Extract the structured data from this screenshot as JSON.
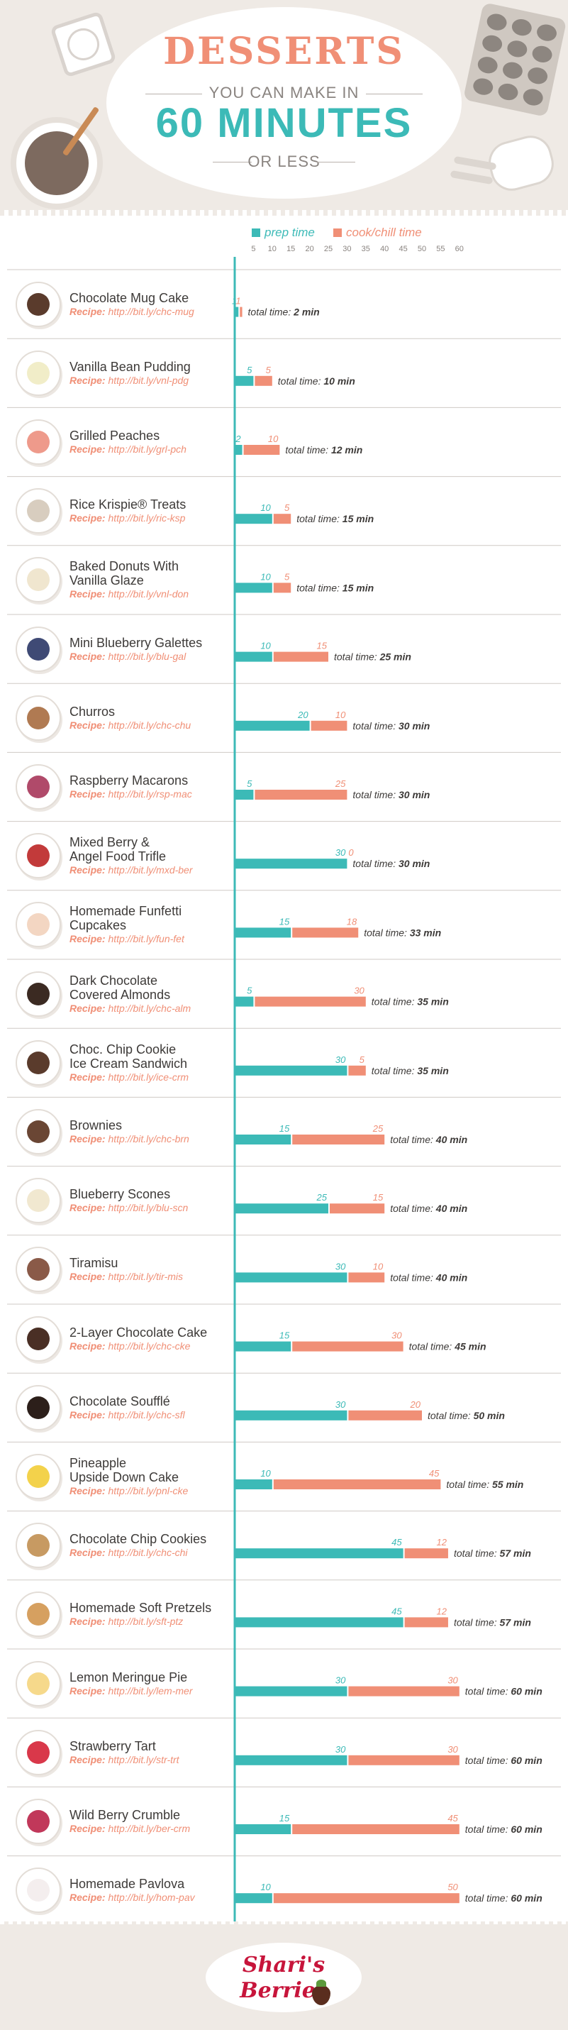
{
  "header": {
    "title_line1": "DESSERTS",
    "title_line2": "YOU CAN MAKE IN",
    "title_line3": "60 MINUTES",
    "title_line4": "OR LESS"
  },
  "footer": {
    "logo_line1": "Shari's",
    "logo_line2": "Berries"
  },
  "colors": {
    "prep": "#3cbab7",
    "cook": "#f08f76",
    "text": "#3d3a38",
    "grid": "#cfcac5"
  },
  "chart_data": {
    "type": "bar",
    "orientation": "horizontal",
    "stacked": true,
    "xlim": [
      0,
      60
    ],
    "x_ticks": [
      5,
      10,
      15,
      20,
      25,
      30,
      35,
      40,
      45,
      50,
      55,
      60
    ],
    "legend": {
      "placement": "top",
      "entries": [
        "prep time",
        "cook/chill time"
      ]
    },
    "recipe_prefix": "Recipe:",
    "total_prefix": "total time:",
    "total_unit": "min",
    "series": [
      {
        "name": "prep time",
        "values": [
          1,
          5,
          2,
          10,
          10,
          10,
          20,
          5,
          30,
          15,
          5,
          30,
          15,
          25,
          30,
          15,
          30,
          10,
          45,
          45,
          30,
          30,
          15,
          10
        ]
      },
      {
        "name": "cook/chill time",
        "values": [
          1,
          5,
          10,
          5,
          5,
          15,
          10,
          25,
          0,
          18,
          30,
          5,
          25,
          15,
          10,
          30,
          20,
          45,
          12,
          12,
          30,
          30,
          45,
          50
        ]
      }
    ],
    "items": [
      {
        "name": [
          "Chocolate Mug Cake"
        ],
        "url": "http://bit.ly/chc-mug",
        "prep": 1,
        "cook": 1,
        "prep_label": "1",
        "cook_label": "1",
        "total": 2
      },
      {
        "name": [
          "Vanilla Bean Pudding"
        ],
        "url": "http://bit.ly/vnl-pdg",
        "prep": 5,
        "cook": 5,
        "prep_label": "5",
        "cook_label": "5",
        "total": 10
      },
      {
        "name": [
          "Grilled Peaches"
        ],
        "url": "http://bit.ly/grl-pch",
        "prep": 2,
        "cook": 10,
        "prep_label": "2",
        "cook_label": "10",
        "total": 12
      },
      {
        "name": [
          "Rice Krispie® Treats"
        ],
        "url": "http://bit.ly/ric-ksp",
        "prep": 10,
        "cook": 5,
        "prep_label": "10",
        "cook_label": "5",
        "total": 15
      },
      {
        "name": [
          "Baked Donuts With",
          "Vanilla Glaze"
        ],
        "url": "http://bit.ly/vnl-don",
        "prep": 10,
        "cook": 5,
        "prep_label": "10",
        "cook_label": "5",
        "total": 15
      },
      {
        "name": [
          "Mini Blueberry Galettes"
        ],
        "url": "http://bit.ly/blu-gal",
        "prep": 10,
        "cook": 15,
        "prep_label": "10",
        "cook_label": "15",
        "total": 25
      },
      {
        "name": [
          "Churros"
        ],
        "url": "http://bit.ly/chc-chu",
        "prep": 20,
        "cook": 10,
        "prep_label": "20",
        "cook_label": "10",
        "total": 30
      },
      {
        "name": [
          "Raspberry Macarons"
        ],
        "url": "http://bit.ly/rsp-mac",
        "prep": 5,
        "cook": 25,
        "prep_label": "5",
        "cook_label": "25",
        "total": 30
      },
      {
        "name": [
          "Mixed Berry &",
          "Angel Food Trifle"
        ],
        "url": "http://bit.ly/mxd-ber",
        "prep": 30,
        "cook": 0,
        "prep_label": "30",
        "cook_label": "0",
        "total": 30
      },
      {
        "name": [
          "Homemade Funfetti",
          "Cupcakes"
        ],
        "url": "http://bit.ly/fun-fet",
        "prep": 15,
        "cook": 18,
        "prep_label": "15",
        "cook_label": "18",
        "total": 33
      },
      {
        "name": [
          "Dark Chocolate",
          "Covered Almonds"
        ],
        "url": "http://bit.ly/chc-alm",
        "prep": 5,
        "cook": 30,
        "prep_label": "5",
        "cook_label": "30",
        "total": 35
      },
      {
        "name": [
          "Choc. Chip Cookie",
          "Ice Cream Sandwich"
        ],
        "url": "http://bit.ly/ice-crm",
        "prep": 30,
        "cook": 5,
        "prep_label": "30",
        "cook_label": "5",
        "total": 35
      },
      {
        "name": [
          "Brownies"
        ],
        "url": "http://bit.ly/chc-brn",
        "prep": 15,
        "cook": 25,
        "prep_label": "15",
        "cook_label": "25",
        "total": 40
      },
      {
        "name": [
          "Blueberry Scones"
        ],
        "url": "http://bit.ly/blu-scn",
        "prep": 25,
        "cook": 15,
        "prep_label": "25",
        "cook_label": "15",
        "total": 40
      },
      {
        "name": [
          "Tiramisu"
        ],
        "url": "http://bit.ly/tir-mis",
        "prep": 30,
        "cook": 10,
        "prep_label": "30",
        "cook_label": "10",
        "total": 40
      },
      {
        "name": [
          "2-Layer Chocolate Cake"
        ],
        "url": "http://bit.ly/chc-cke",
        "prep": 15,
        "cook": 30,
        "prep_label": "15",
        "cook_label": "30",
        "total": 45
      },
      {
        "name": [
          "Chocolate Soufflé"
        ],
        "url": "http://bit.ly/chc-sfl",
        "prep": 30,
        "cook": 20,
        "prep_label": "30",
        "cook_label": "20",
        "total": 50
      },
      {
        "name": [
          "Pineapple",
          "Upside Down Cake"
        ],
        "url": "http://bit.ly/pnl-cke",
        "prep": 10,
        "cook": 45,
        "prep_label": "10",
        "cook_label": "45",
        "total": 55
      },
      {
        "name": [
          "Chocolate Chip Cookies"
        ],
        "url": "http://bit.ly/chc-chi",
        "prep": 45,
        "cook": 12,
        "prep_label": "45",
        "cook_label": "12",
        "total": 57
      },
      {
        "name": [
          "Homemade Soft Pretzels"
        ],
        "url": "http://bit.ly/sft-ptz",
        "prep": 45,
        "cook": 12,
        "prep_label": "45",
        "cook_label": "12",
        "total": 57
      },
      {
        "name": [
          "Lemon Meringue Pie"
        ],
        "url": "http://bit.ly/lem-mer",
        "prep": 30,
        "cook": 30,
        "prep_label": "30",
        "cook_label": "30",
        "total": 60
      },
      {
        "name": [
          "Strawberry Tart"
        ],
        "url": "http://bit.ly/str-trt",
        "prep": 30,
        "cook": 30,
        "prep_label": "30",
        "cook_label": "30",
        "total": 60
      },
      {
        "name": [
          "Wild Berry Crumble"
        ],
        "url": "http://bit.ly/ber-crm",
        "prep": 15,
        "cook": 45,
        "prep_label": "15",
        "cook_label": "45",
        "total": 60
      },
      {
        "name": [
          "Homemade Pavlova"
        ],
        "url": "http://bit.ly/hom-pav",
        "prep": 10,
        "cook": 50,
        "prep_label": "10",
        "cook_label": "50",
        "total": 60
      }
    ]
  }
}
